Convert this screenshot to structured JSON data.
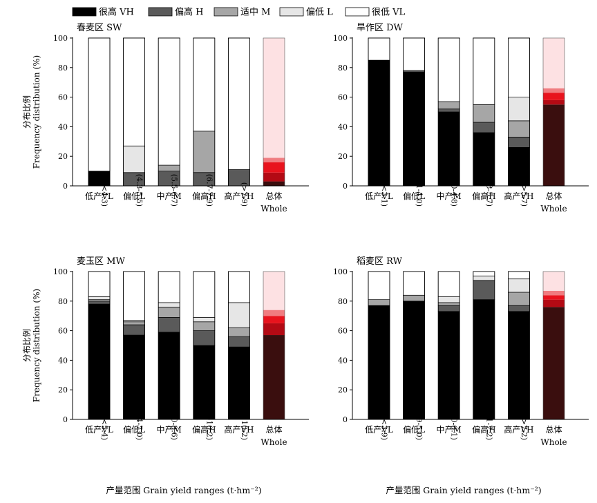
{
  "legend": [
    {
      "label": "很高 VH",
      "color": "#000000"
    },
    {
      "label": "偏高 H",
      "color": "#5a5a5a"
    },
    {
      "label": "适中 M",
      "color": "#a6a6a6"
    },
    {
      "label": "偏低 L",
      "color": "#e6e6e6"
    },
    {
      "label": "很低 VL",
      "color": "#ffffff"
    }
  ],
  "whole_colors": [
    "#3a0e0e",
    "#b30a14",
    "#e8131d",
    "#f07c80",
    "#fde1e3"
  ],
  "chart_data": [
    {
      "type": "bar",
      "stacked": true,
      "title": "春麦区 SW",
      "ylabel_cn": "分布比例",
      "ylabel_en": "Frequency distribution (%)",
      "xlabel": "",
      "ylim": [
        0,
        100
      ],
      "yticks": [
        0,
        20,
        40,
        60,
        80,
        100
      ],
      "categories": [
        "低产VL",
        "偏低L",
        "中产M",
        "偏高H",
        "高产VH",
        "总体"
      ],
      "categories_en": [
        "",
        "",
        "",
        "",
        "",
        "Whole"
      ],
      "ranges": [
        "(<4.3)",
        "(4.3-5.5)",
        "(5.5-6.7)",
        "(6.7-7.9)",
        "(>7.9)",
        ""
      ],
      "series": [
        {
          "name": "很高 VH",
          "values": [
            10,
            0,
            0,
            0,
            0,
            3
          ]
        },
        {
          "name": "偏高 H",
          "values": [
            0,
            9,
            10,
            9,
            11,
            6
          ]
        },
        {
          "name": "适中 M",
          "values": [
            0,
            0,
            4,
            28,
            0,
            7
          ]
        },
        {
          "name": "偏低 L",
          "values": [
            0,
            18,
            0,
            0,
            0,
            3
          ]
        },
        {
          "name": "很低 VL",
          "values": [
            90,
            73,
            86,
            63,
            89,
            81
          ]
        }
      ]
    },
    {
      "type": "bar",
      "stacked": true,
      "title": "旱作区 DW",
      "ylabel_cn": "",
      "ylabel_en": "",
      "xlabel": "",
      "ylim": [
        0,
        100
      ],
      "yticks": [
        0,
        20,
        40,
        60,
        80,
        100
      ],
      "categories": [
        "低产VL",
        "偏低L",
        "中产M",
        "偏高H",
        "高产VH",
        "总体"
      ],
      "categories_en": [
        "",
        "",
        "",
        "",
        "",
        "Whole"
      ],
      "ranges": [
        "(<3.1)",
        "(3.1-4.0)",
        "(4.0-4.8)",
        "(4.8-5.7)",
        "(>5.7)",
        ""
      ],
      "series": [
        {
          "name": "很高 VH",
          "values": [
            85,
            77,
            50,
            36,
            26,
            55
          ]
        },
        {
          "name": "偏高 H",
          "values": [
            0,
            1,
            2,
            7,
            7,
            3
          ]
        },
        {
          "name": "适中 M",
          "values": [
            0,
            0,
            5,
            12,
            11,
            5
          ]
        },
        {
          "name": "偏低 L",
          "values": [
            0,
            0,
            0,
            0,
            16,
            3
          ]
        },
        {
          "name": "很低 VL",
          "values": [
            15,
            22,
            43,
            45,
            40,
            34
          ]
        }
      ]
    },
    {
      "type": "bar",
      "stacked": true,
      "title": "麦玉区 MW",
      "ylabel_cn": "分布比例",
      "ylabel_en": "Frequency distribution (%)",
      "xlabel": "产量范围 Grain yield ranges (t·hm⁻²)",
      "ylim": [
        0,
        100
      ],
      "yticks": [
        0,
        20,
        40,
        60,
        80,
        100
      ],
      "categories": [
        "低产VL",
        "偏低L",
        "中产M",
        "偏高H",
        "高产VH",
        "总体"
      ],
      "categories_en": [
        "",
        "",
        "",
        "",
        "",
        "Whole"
      ],
      "ranges": [
        "(<5.4)",
        "(5.4-7.0)",
        "(7.0-8.6)",
        "(8.6-10.2)",
        "(>10.2)",
        ""
      ],
      "series": [
        {
          "name": "很高 VH",
          "values": [
            78,
            57,
            59,
            50,
            49,
            57
          ]
        },
        {
          "name": "偏高 H",
          "values": [
            2,
            7,
            10,
            10,
            7,
            8
          ]
        },
        {
          "name": "适中 M",
          "values": [
            1,
            2,
            7,
            6,
            6,
            5
          ]
        },
        {
          "name": "偏低 L",
          "values": [
            2,
            1,
            3,
            3,
            17,
            4
          ]
        },
        {
          "name": "很低 VL",
          "values": [
            17,
            33,
            21,
            31,
            21,
            26
          ]
        }
      ]
    },
    {
      "type": "bar",
      "stacked": true,
      "title": "稻麦区 RW",
      "ylabel_cn": "",
      "ylabel_en": "",
      "xlabel": "产量范围 Grain yield ranges (t·hm⁻²)",
      "ylim": [
        0,
        100
      ],
      "yticks": [
        0,
        20,
        40,
        60,
        80,
        100
      ],
      "categories": [
        "低产VL",
        "偏低L",
        "中产M",
        "偏高H",
        "高产VH",
        "总体"
      ],
      "categories_en": [
        "",
        "",
        "",
        "",
        "",
        "Whole"
      ],
      "ranges": [
        "(<3.9)",
        "(3.9-5.0)",
        "(5.0-6.1)",
        "(6.1-7.2)",
        "(>7.2)",
        ""
      ],
      "series": [
        {
          "name": "很高 VH",
          "values": [
            77,
            80,
            73,
            81,
            73,
            76
          ]
        },
        {
          "name": "偏高 H",
          "values": [
            0,
            0,
            4,
            13,
            4,
            5
          ]
        },
        {
          "name": "适中 M",
          "values": [
            4,
            4,
            2,
            0,
            9,
            3
          ]
        },
        {
          "name": "偏低 L",
          "values": [
            0,
            0,
            4,
            3,
            9,
            3
          ]
        },
        {
          "name": "很低 VL",
          "values": [
            19,
            16,
            17,
            3,
            5,
            13
          ]
        }
      ]
    }
  ]
}
